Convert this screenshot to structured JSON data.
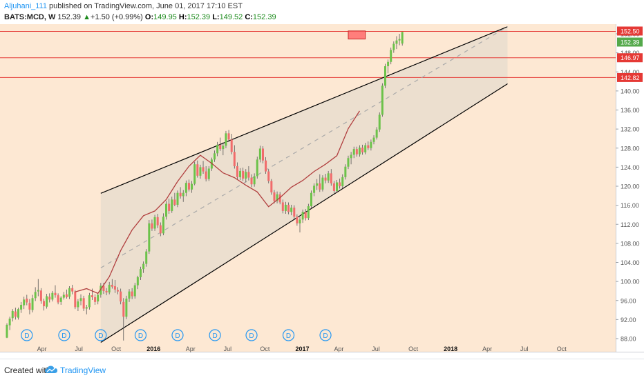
{
  "header": {
    "author": "Aljuhani_111",
    "published_text": "published on TradingView.com, June 01, 2017 17:10 EST",
    "symbol": "BATS:MCD, W",
    "last": "152.39",
    "change_arrow": "▲",
    "change": "+1.50 (+0.99%)",
    "o_label": "O:",
    "o_value": "149.95",
    "h_label": "H:",
    "h_value": "152.39",
    "l_label": "L:",
    "l_value": "149.52",
    "c_label": "C:",
    "c_value": "152.39"
  },
  "footer": {
    "created_with": "Created with",
    "brand": "TradingView",
    "logo_icon": "tradingview-cloud-icon"
  },
  "colors": {
    "background": "#fde8d3",
    "channel_fill": "#e6dccd",
    "up": "#6cc24a",
    "down": "#f16b6b",
    "level_line": "#e53935",
    "ma": "#b13f3f",
    "channel": "#000000",
    "midline": "#a9a9a9",
    "dividend": "#2196f3"
  },
  "chart_data": {
    "type": "candlestick",
    "symbol": "BATS:MCD",
    "interval": "W",
    "ylim": [
      84,
      154
    ],
    "y_ticks": [
      "88.00",
      "92.00",
      "96.00",
      "100.00",
      "104.00",
      "108.00",
      "112.00",
      "116.00",
      "120.00",
      "124.00",
      "128.00",
      "132.00",
      "136.00",
      "140.00",
      "144.00",
      "148.00",
      "152.00"
    ],
    "x_ticks": [
      "Apr",
      "Jul",
      "Oct",
      "2016",
      "Apr",
      "Jul",
      "Oct",
      "2017",
      "Apr",
      "Jul",
      "Oct",
      "2018",
      "Apr",
      "Jul",
      "Oct"
    ],
    "price_labels": [
      "152.50",
      "152.39",
      "146.97",
      "142.82"
    ],
    "horizontal_levels": [
      152.5,
      146.97,
      142.82
    ],
    "channel_start": "2015-08-24",
    "channel_end": "2018-05-21",
    "channel_upper": [
      118.5,
      153.5
    ],
    "channel_lower": [
      87.2,
      141.5
    ],
    "channel_mid_from": "2015-08-24",
    "channel_mid_end_value": 153.5,
    "resistance_box": {
      "date_from": "2017-04-24",
      "date_to": "2017-06-05",
      "price_low": 150.9,
      "price_high": 152.6
    },
    "dividend_marker": "D",
    "dividend_dates": [
      "2015-02-23",
      "2015-05-26",
      "2015-08-24",
      "2015-11-30",
      "2016-02-29",
      "2016-05-31",
      "2016-08-29",
      "2016-11-28",
      "2017-02-27"
    ],
    "ma_series": {
      "dates": [
        "2015-06-22",
        "2015-07-20",
        "2015-08-17",
        "2015-09-14",
        "2015-10-12",
        "2015-11-09",
        "2015-12-07",
        "2016-01-04",
        "2016-02-01",
        "2016-02-29",
        "2016-03-28",
        "2016-04-25",
        "2016-05-23",
        "2016-06-20",
        "2016-07-18",
        "2016-08-15",
        "2016-09-12",
        "2016-10-10",
        "2016-11-07",
        "2016-12-05",
        "2017-01-02",
        "2017-01-30",
        "2017-02-27",
        "2017-03-27",
        "2017-04-24",
        "2017-05-22"
      ],
      "values": [
        97.8,
        98.5,
        97.5,
        101,
        106.5,
        110.8,
        113.8,
        114.8,
        117.2,
        121,
        124.2,
        126.5,
        124.8,
        122.8,
        121.8,
        120.2,
        118.8,
        115.7,
        117.6,
        119.8,
        121.2,
        123.1,
        124.6,
        126.4,
        132.1,
        135.8
      ]
    },
    "series": [
      {
        "name": "BATS:MCD, W",
        "start_date": "2015-01-05",
        "ohlc": [
          [
            88.2,
            91.2,
            88.1,
            90.9
          ],
          [
            90.8,
            92.6,
            89.8,
            92.2
          ],
          [
            92.3,
            94.2,
            91.6,
            93.8
          ],
          [
            93.7,
            94.5,
            92.0,
            92.6
          ],
          [
            92.4,
            94.5,
            92.0,
            94.2
          ],
          [
            94.1,
            95.7,
            93.4,
            95.1
          ],
          [
            95.0,
            96.8,
            94.2,
            96.2
          ],
          [
            96.4,
            97.2,
            95.0,
            95.6
          ],
          [
            95.5,
            96.3,
            93.1,
            94.1
          ],
          [
            94.0,
            97.2,
            93.5,
            96.5
          ],
          [
            96.5,
            98.8,
            95.9,
            97.8
          ],
          [
            97.9,
            100.5,
            96.9,
            98.2
          ],
          [
            98.1,
            98.6,
            95.3,
            95.9
          ],
          [
            95.9,
            96.4,
            93.9,
            94.8
          ],
          [
            94.7,
            97.4,
            94.3,
            96.9
          ],
          [
            96.8,
            97.5,
            95.6,
            96.2
          ],
          [
            96.2,
            98.0,
            95.8,
            97.6
          ],
          [
            97.6,
            99.2,
            96.6,
            97.1
          ],
          [
            97.1,
            97.5,
            95.2,
            95.6
          ],
          [
            95.7,
            96.9,
            95.1,
            96.6
          ],
          [
            96.6,
            97.8,
            96.2,
            97.2
          ],
          [
            97.3,
            98.3,
            96.4,
            96.7
          ],
          [
            96.8,
            99.0,
            96.3,
            98.6
          ],
          [
            98.6,
            99.3,
            97.3,
            97.9
          ],
          [
            97.9,
            98.2,
            94.2,
            94.6
          ],
          [
            94.6,
            96.3,
            93.8,
            95.8
          ],
          [
            95.9,
            97.3,
            95.0,
            96.5
          ],
          [
            96.5,
            97.0,
            93.8,
            94.3
          ],
          [
            94.3,
            95.1,
            93.1,
            94.6
          ],
          [
            94.6,
            97.6,
            94.1,
            97.1
          ],
          [
            97.1,
            98.5,
            96.1,
            96.7
          ],
          [
            96.7,
            97.3,
            95.1,
            95.7
          ],
          [
            95.8,
            97.6,
            95.2,
            97.2
          ],
          [
            97.2,
            99.7,
            96.6,
            99.1
          ],
          [
            99.1,
            99.7,
            97.4,
            98.0
          ],
          [
            98.0,
            98.6,
            97.1,
            97.7
          ],
          [
            97.7,
            99.9,
            97.3,
            99.3
          ],
          [
            99.3,
            100.5,
            98.5,
            98.9
          ],
          [
            99.0,
            100.3,
            97.6,
            98.3
          ],
          [
            98.2,
            98.8,
            97.3,
            97.9
          ],
          [
            97.9,
            98.5,
            95.2,
            95.8
          ],
          [
            95.7,
            96.5,
            87.6,
            92.6
          ],
          [
            92.6,
            97.0,
            92.1,
            96.4
          ],
          [
            96.4,
            98.4,
            95.7,
            97.9
          ],
          [
            97.9,
            98.6,
            96.3,
            96.9
          ],
          [
            96.9,
            99.7,
            96.4,
            99.2
          ],
          [
            99.2,
            101.2,
            98.4,
            100.9
          ],
          [
            100.9,
            103.1,
            100.3,
            102.6
          ],
          [
            102.6,
            104.2,
            101.8,
            103.7
          ],
          [
            103.7,
            106.8,
            103.1,
            106.3
          ],
          [
            106.3,
            112.9,
            105.8,
            112.2
          ],
          [
            112.2,
            113.0,
            110.6,
            111.1
          ],
          [
            111.1,
            114.0,
            110.6,
            113.5
          ],
          [
            113.5,
            114.2,
            111.2,
            111.8
          ],
          [
            111.8,
            112.4,
            109.5,
            110.1
          ],
          [
            110.1,
            114.3,
            109.7,
            113.6
          ],
          [
            113.6,
            116.9,
            113.0,
            116.3
          ],
          [
            116.3,
            117.4,
            114.2,
            114.8
          ],
          [
            114.8,
            117.8,
            114.4,
            117.2
          ],
          [
            117.2,
            118.6,
            115.8,
            116.1
          ],
          [
            116.1,
            119.1,
            115.6,
            118.6
          ],
          [
            118.6,
            119.8,
            117.4,
            117.9
          ],
          [
            117.9,
            119.2,
            116.7,
            118.6
          ],
          [
            118.6,
            121.2,
            117.9,
            120.7
          ],
          [
            120.7,
            121.4,
            118.9,
            119.3
          ],
          [
            119.3,
            121.1,
            118.6,
            120.5
          ],
          [
            120.5,
            125.1,
            120.2,
            124.6
          ],
          [
            124.6,
            125.4,
            121.8,
            122.2
          ],
          [
            122.2,
            124.5,
            121.6,
            124.0
          ],
          [
            124.0,
            125.3,
            122.6,
            123.1
          ],
          [
            123.1,
            124.2,
            121.0,
            121.5
          ],
          [
            121.5,
            124.2,
            121.1,
            123.7
          ],
          [
            123.7,
            126.0,
            123.2,
            125.6
          ],
          [
            125.6,
            127.5,
            125.1,
            126.9
          ],
          [
            126.9,
            129.3,
            126.3,
            128.7
          ],
          [
            128.7,
            130.2,
            127.4,
            127.8
          ],
          [
            127.8,
            129.2,
            126.5,
            128.5
          ],
          [
            128.5,
            131.6,
            128.0,
            131.1
          ],
          [
            131.1,
            131.8,
            129.3,
            129.8
          ],
          [
            129.8,
            131.0,
            126.7,
            127.2
          ],
          [
            127.2,
            128.6,
            123.7,
            124.2
          ],
          [
            124.2,
            125.0,
            121.4,
            121.9
          ],
          [
            121.9,
            123.8,
            121.3,
            123.2
          ],
          [
            123.2,
            123.9,
            121.1,
            121.6
          ],
          [
            121.6,
            123.6,
            120.8,
            123.0
          ],
          [
            123.0,
            124.2,
            121.2,
            121.8
          ],
          [
            121.8,
            122.5,
            119.8,
            120.4
          ],
          [
            120.4,
            122.7,
            119.9,
            122.1
          ],
          [
            122.1,
            126.2,
            121.6,
            125.6
          ],
          [
            125.6,
            128.5,
            125.0,
            127.9
          ],
          [
            127.9,
            128.4,
            124.8,
            125.4
          ],
          [
            125.4,
            126.1,
            122.6,
            123.1
          ],
          [
            123.1,
            123.6,
            120.6,
            121.1
          ],
          [
            121.1,
            121.5,
            118.2,
            118.7
          ],
          [
            118.7,
            119.2,
            116.4,
            116.9
          ],
          [
            116.9,
            118.9,
            116.4,
            118.3
          ],
          [
            118.3,
            118.8,
            116.2,
            116.6
          ],
          [
            116.6,
            117.2,
            114.3,
            114.8
          ],
          [
            114.8,
            116.7,
            114.2,
            116.1
          ],
          [
            116.1,
            116.6,
            114.1,
            114.6
          ],
          [
            114.6,
            116.1,
            113.9,
            115.5
          ],
          [
            115.5,
            116.0,
            113.1,
            113.6
          ],
          [
            113.6,
            114.1,
            111.7,
            112.2
          ],
          [
            112.2,
            113.6,
            110.3,
            113.0
          ],
          [
            113.0,
            115.1,
            112.3,
            114.6
          ],
          [
            114.6,
            115.2,
            112.8,
            113.3
          ],
          [
            113.3,
            116.3,
            112.9,
            115.8
          ],
          [
            115.8,
            119.1,
            115.3,
            118.6
          ],
          [
            118.6,
            120.6,
            117.9,
            120.1
          ],
          [
            120.1,
            121.5,
            119.2,
            120.6
          ],
          [
            120.6,
            122.5,
            118.8,
            119.3
          ],
          [
            119.3,
            122.3,
            118.9,
            121.8
          ],
          [
            121.8,
            122.6,
            120.6,
            121.2
          ],
          [
            121.2,
            123.2,
            120.7,
            122.7
          ],
          [
            122.7,
            123.6,
            120.1,
            120.6
          ],
          [
            120.6,
            121.1,
            118.5,
            119.0
          ],
          [
            119.0,
            121.3,
            118.6,
            120.8
          ],
          [
            120.8,
            121.6,
            119.5,
            120.0
          ],
          [
            120.0,
            122.5,
            119.6,
            121.9
          ],
          [
            121.9,
            124.6,
            121.4,
            124.1
          ],
          [
            124.1,
            126.4,
            123.6,
            125.9
          ],
          [
            125.9,
            127.2,
            124.6,
            126.6
          ],
          [
            126.6,
            128.3,
            125.9,
            127.8
          ],
          [
            127.8,
            128.3,
            126.2,
            126.7
          ],
          [
            126.7,
            128.6,
            126.2,
            128.1
          ],
          [
            128.1,
            128.7,
            126.6,
            127.1
          ],
          [
            127.1,
            129.1,
            126.7,
            128.6
          ],
          [
            128.6,
            129.4,
            127.6,
            128.0
          ],
          [
            128.0,
            129.8,
            127.5,
            129.3
          ],
          [
            129.3,
            130.7,
            128.8,
            130.2
          ],
          [
            130.2,
            132.4,
            129.8,
            131.9
          ],
          [
            131.9,
            135.5,
            131.4,
            135.0
          ],
          [
            135.0,
            141.6,
            134.6,
            141.1
          ],
          [
            141.1,
            145.7,
            140.6,
            145.2
          ],
          [
            145.2,
            146.6,
            143.7,
            146.1
          ],
          [
            146.1,
            149.1,
            145.6,
            148.6
          ],
          [
            148.6,
            150.4,
            148.0,
            149.9
          ],
          [
            149.9,
            151.5,
            148.8,
            150.6
          ],
          [
            150.6,
            152.0,
            149.6,
            150.9
          ],
          [
            149.95,
            152.39,
            149.52,
            152.39
          ]
        ]
      }
    ]
  }
}
